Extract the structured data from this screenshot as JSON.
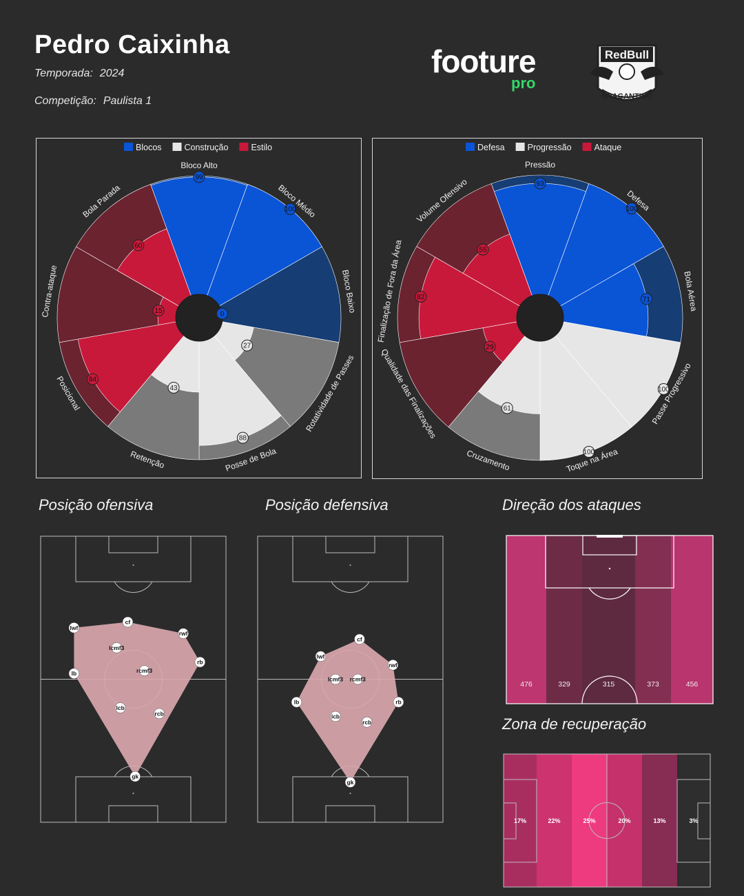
{
  "header": {
    "name": "Pedro Caixinha",
    "season_label": "Temporada:",
    "season_value": "2024",
    "competition_label": "Competição:",
    "competition_value": "Paulista 1",
    "brand": "footure",
    "brand_sub": "pro",
    "club_logo_text": [
      "RedBull",
      "BRAGANTINO"
    ]
  },
  "colors": {
    "background": "#2b2b2b",
    "brand_green": "#34d66a",
    "blue": "#0a54d6",
    "blue_dark": "#163d74",
    "red": "#c8193a",
    "red_dark": "#6b2330",
    "grey_light": "#e6e6e6",
    "grey_dark": "#7a7a7a"
  },
  "chart_data": [
    {
      "type": "radar-polar-bar",
      "name": "style",
      "legend": [
        "Blocos",
        "Construção",
        "Estilo"
      ],
      "categories": [
        "Bloco Alto",
        "Bloco Médio",
        "Bloco Baixo",
        "Rotatividade de Passes",
        "Posse de Bola",
        "Retenção",
        "Posicional",
        "Contra-ataque",
        "Bola Parada"
      ],
      "values": [
        99,
        100,
        0,
        27,
        88,
        43,
        84,
        15,
        60
      ],
      "groups": [
        "Blocos",
        "Blocos",
        "Blocos",
        "Construção",
        "Construção",
        "Construção",
        "Estilo",
        "Estilo",
        "Estilo"
      ],
      "range": [
        0,
        100
      ]
    },
    {
      "type": "radar-polar-bar",
      "name": "phases",
      "legend": [
        "Defesa",
        "Progressão",
        "Ataque"
      ],
      "categories": [
        "Pressão",
        "Defesa",
        "Bola Aérea",
        "Passe Progressivo",
        "Toque na Área",
        "Cruzamento",
        "Qualidade das Finalizações",
        "Finalização de Fora da Área",
        "Volume Ofensivo"
      ],
      "values": [
        93,
        100,
        71,
        100,
        100,
        61,
        29,
        82,
        55
      ],
      "groups": [
        "Defesa",
        "Defesa",
        "Defesa",
        "Progressão",
        "Progressão",
        "Progressão",
        "Ataque",
        "Ataque",
        "Ataque"
      ],
      "range": [
        0,
        100
      ]
    },
    {
      "type": "scatter",
      "name": "offensive_position",
      "title": "Posição ofensiva",
      "points": [
        {
          "label": "lwf",
          "x": 18,
          "y": 68
        },
        {
          "label": "cf",
          "x": 47,
          "y": 70
        },
        {
          "label": "rwf",
          "x": 77,
          "y": 66
        },
        {
          "label": "lcmf3",
          "x": 41,
          "y": 61
        },
        {
          "label": "rcmf3",
          "x": 56,
          "y": 53
        },
        {
          "label": "lb",
          "x": 18,
          "y": 52
        },
        {
          "label": "rb",
          "x": 86,
          "y": 56
        },
        {
          "label": "lcb",
          "x": 43,
          "y": 40
        },
        {
          "label": "rcb",
          "x": 64,
          "y": 38
        },
        {
          "label": "gk",
          "x": 51,
          "y": 16
        }
      ],
      "hull": [
        "gk",
        "lb",
        "lwf",
        "cf",
        "rwf",
        "rb"
      ]
    },
    {
      "type": "scatter",
      "name": "defensive_position",
      "title": "Posição defensiva",
      "points": [
        {
          "label": "cf",
          "x": 55,
          "y": 64
        },
        {
          "label": "lwf",
          "x": 34,
          "y": 58
        },
        {
          "label": "rwf",
          "x": 73,
          "y": 55
        },
        {
          "label": "lcmf3",
          "x": 42,
          "y": 50
        },
        {
          "label": "rcmf3",
          "x": 54,
          "y": 50
        },
        {
          "label": "lb",
          "x": 21,
          "y": 42
        },
        {
          "label": "rb",
          "x": 76,
          "y": 42
        },
        {
          "label": "lcb",
          "x": 42,
          "y": 37
        },
        {
          "label": "rcb",
          "x": 59,
          "y": 35
        },
        {
          "label": "gk",
          "x": 50,
          "y": 14
        }
      ],
      "hull": [
        "gk",
        "lb",
        "lwf",
        "cf",
        "rwf",
        "rb"
      ]
    },
    {
      "type": "heatmap",
      "name": "attack_direction",
      "title": "Direção dos ataques",
      "categories": [
        "lane1",
        "lane2",
        "lane3",
        "lane4",
        "lane5"
      ],
      "values": [
        476,
        329,
        315,
        373,
        456
      ],
      "colors": [
        "#bd3670",
        "#6e2b45",
        "#5e2a40",
        "#832f52",
        "#b8356d"
      ]
    },
    {
      "type": "heatmap",
      "name": "recovery_zone",
      "title": "Zona de recuperação",
      "categories": [
        "zone1",
        "zone2",
        "zone3",
        "zone4",
        "zone5",
        "zone6"
      ],
      "values": [
        "17%",
        "22%",
        "25%",
        "20%",
        "13%",
        "3%"
      ],
      "colors": [
        "#a82e60",
        "#cc336f",
        "#ee3a7f",
        "#c5326b",
        "#872c52",
        "#2e2e2e"
      ]
    }
  ]
}
